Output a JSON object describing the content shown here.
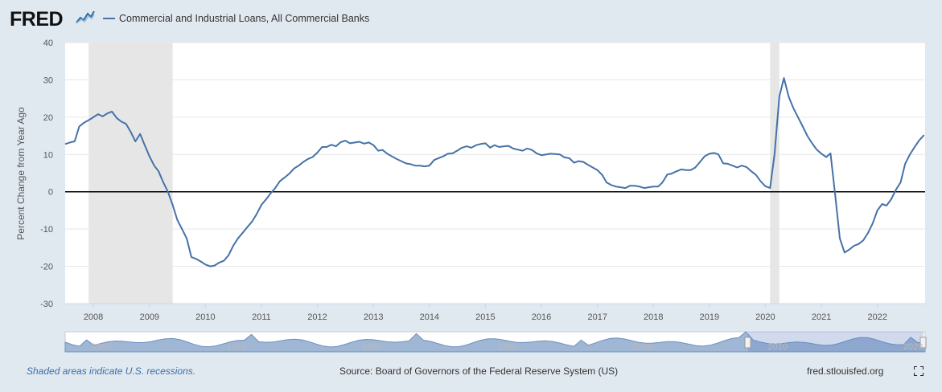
{
  "header": {
    "logo_text": "FRED",
    "series_name": "Commercial and Industrial Loans, All Commercial Banks",
    "series_color": "#4572a7"
  },
  "footer": {
    "recession_note": "Shaded areas indicate U.S. recessions.",
    "source": "Source: Board of Governors of the Federal Reserve System (US)",
    "site": "fred.stlouisfed.org",
    "fullscreen_icon": "fullscreen-icon"
  },
  "navigator": {
    "labels": [
      "1960",
      "1970",
      "1980",
      "1990",
      "2000",
      "2010",
      "2020"
    ]
  },
  "chart_data": {
    "type": "line",
    "ylabel": "Percent Change from Year Ago",
    "xlabel": "",
    "ylim": [
      -30,
      40
    ],
    "yticks": [
      -30,
      -20,
      -10,
      0,
      10,
      20,
      30,
      40
    ],
    "xticks": [
      "2008",
      "2009",
      "2010",
      "2011",
      "2012",
      "2013",
      "2014",
      "2015",
      "2016",
      "2017",
      "2018",
      "2019",
      "2020",
      "2021",
      "2022"
    ],
    "grid": true,
    "recessions": [
      [
        "2007-12",
        "2009-06"
      ],
      [
        "2020-02",
        "2020-04"
      ]
    ],
    "series": [
      {
        "name": "Commercial and Industrial Loans, All Commercial Banks",
        "color": "#4572a7",
        "points": [
          [
            "2007-07-01",
            12.8
          ],
          [
            "2007-08-01",
            13.2
          ],
          [
            "2007-09-01",
            13.5
          ],
          [
            "2007-10-01",
            17.5
          ],
          [
            "2007-11-01",
            18.5
          ],
          [
            "2007-12-01",
            19.2
          ],
          [
            "2008-01-01",
            20.0
          ],
          [
            "2008-02-01",
            20.8
          ],
          [
            "2008-03-01",
            20.2
          ],
          [
            "2008-04-01",
            21.0
          ],
          [
            "2008-05-01",
            21.5
          ],
          [
            "2008-06-01",
            19.8
          ],
          [
            "2008-07-01",
            18.8
          ],
          [
            "2008-08-01",
            18.2
          ],
          [
            "2008-09-01",
            16.0
          ],
          [
            "2008-10-01",
            13.5
          ],
          [
            "2008-11-01",
            15.5
          ],
          [
            "2008-12-01",
            12.5
          ],
          [
            "2009-01-01",
            9.5
          ],
          [
            "2009-02-01",
            7.0
          ],
          [
            "2009-03-01",
            5.5
          ],
          [
            "2009-04-01",
            2.5
          ],
          [
            "2009-05-01",
            0.0
          ],
          [
            "2009-06-01",
            -3.5
          ],
          [
            "2009-07-01",
            -7.5
          ],
          [
            "2009-08-01",
            -10.0
          ],
          [
            "2009-09-01",
            -12.5
          ],
          [
            "2009-10-01",
            -17.5
          ],
          [
            "2009-11-01",
            -18.0
          ],
          [
            "2009-12-01",
            -18.7
          ],
          [
            "2010-01-01",
            -19.5
          ],
          [
            "2010-02-01",
            -20.0
          ],
          [
            "2010-03-01",
            -19.8
          ],
          [
            "2010-04-01",
            -19.0
          ],
          [
            "2010-05-01",
            -18.5
          ],
          [
            "2010-06-01",
            -17.0
          ],
          [
            "2010-07-01",
            -14.5
          ],
          [
            "2010-08-01",
            -12.5
          ],
          [
            "2010-09-01",
            -11.0
          ],
          [
            "2010-10-01",
            -9.5
          ],
          [
            "2010-11-01",
            -8.0
          ],
          [
            "2010-12-01",
            -6.0
          ],
          [
            "2011-01-01",
            -3.5
          ],
          [
            "2011-02-01",
            -2.0
          ],
          [
            "2011-03-01",
            -0.5
          ],
          [
            "2011-04-01",
            1.0
          ],
          [
            "2011-05-01",
            2.8
          ],
          [
            "2011-06-01",
            3.8
          ],
          [
            "2011-07-01",
            4.8
          ],
          [
            "2011-08-01",
            6.2
          ],
          [
            "2011-09-01",
            7.0
          ],
          [
            "2011-10-01",
            8.0
          ],
          [
            "2011-11-01",
            8.8
          ],
          [
            "2011-12-01",
            9.3
          ],
          [
            "2012-01-01",
            10.5
          ],
          [
            "2012-02-01",
            12.0
          ],
          [
            "2012-03-01",
            12.0
          ],
          [
            "2012-04-01",
            12.6
          ],
          [
            "2012-05-01",
            12.2
          ],
          [
            "2012-06-01",
            13.3
          ],
          [
            "2012-07-01",
            13.7
          ],
          [
            "2012-08-01",
            13.0
          ],
          [
            "2012-09-01",
            13.2
          ],
          [
            "2012-10-01",
            13.4
          ],
          [
            "2012-11-01",
            12.9
          ],
          [
            "2012-12-01",
            13.2
          ],
          [
            "2013-01-01",
            12.5
          ],
          [
            "2013-02-01",
            11.0
          ],
          [
            "2013-03-01",
            11.2
          ],
          [
            "2013-04-01",
            10.2
          ],
          [
            "2013-05-01",
            9.5
          ],
          [
            "2013-06-01",
            8.8
          ],
          [
            "2013-07-01",
            8.2
          ],
          [
            "2013-08-01",
            7.6
          ],
          [
            "2013-09-01",
            7.4
          ],
          [
            "2013-10-01",
            7.0
          ],
          [
            "2013-11-01",
            7.0
          ],
          [
            "2013-12-01",
            6.8
          ],
          [
            "2014-01-01",
            7.0
          ],
          [
            "2014-02-01",
            8.5
          ],
          [
            "2014-03-01",
            9.0
          ],
          [
            "2014-04-01",
            9.5
          ],
          [
            "2014-05-01",
            10.2
          ],
          [
            "2014-06-01",
            10.3
          ],
          [
            "2014-07-01",
            11.0
          ],
          [
            "2014-08-01",
            11.8
          ],
          [
            "2014-09-01",
            12.2
          ],
          [
            "2014-10-01",
            11.8
          ],
          [
            "2014-11-01",
            12.5
          ],
          [
            "2014-12-01",
            12.8
          ],
          [
            "2015-01-01",
            13.0
          ],
          [
            "2015-02-01",
            11.8
          ],
          [
            "2015-03-01",
            12.5
          ],
          [
            "2015-04-01",
            12.0
          ],
          [
            "2015-05-01",
            12.2
          ],
          [
            "2015-06-01",
            12.3
          ],
          [
            "2015-07-01",
            11.6
          ],
          [
            "2015-08-01",
            11.3
          ],
          [
            "2015-09-01",
            11.0
          ],
          [
            "2015-10-01",
            11.6
          ],
          [
            "2015-11-01",
            11.2
          ],
          [
            "2015-12-01",
            10.3
          ],
          [
            "2016-01-01",
            9.8
          ],
          [
            "2016-02-01",
            10.0
          ],
          [
            "2016-03-01",
            10.2
          ],
          [
            "2016-04-01",
            10.1
          ],
          [
            "2016-05-01",
            10.0
          ],
          [
            "2016-06-01",
            9.2
          ],
          [
            "2016-07-01",
            9.0
          ],
          [
            "2016-08-01",
            7.8
          ],
          [
            "2016-09-01",
            8.2
          ],
          [
            "2016-10-01",
            8.0
          ],
          [
            "2016-11-01",
            7.2
          ],
          [
            "2016-12-01",
            6.5
          ],
          [
            "2017-01-01",
            5.8
          ],
          [
            "2017-02-01",
            4.5
          ],
          [
            "2017-03-01",
            2.5
          ],
          [
            "2017-04-01",
            1.8
          ],
          [
            "2017-05-01",
            1.4
          ],
          [
            "2017-06-01",
            1.2
          ],
          [
            "2017-07-01",
            1.0
          ],
          [
            "2017-08-01",
            1.6
          ],
          [
            "2017-09-01",
            1.6
          ],
          [
            "2017-10-01",
            1.4
          ],
          [
            "2017-11-01",
            1.0
          ],
          [
            "2017-12-01",
            1.2
          ],
          [
            "2018-01-01",
            1.4
          ],
          [
            "2018-02-01",
            1.4
          ],
          [
            "2018-03-01",
            2.5
          ],
          [
            "2018-04-01",
            4.6
          ],
          [
            "2018-05-01",
            4.9
          ],
          [
            "2018-06-01",
            5.5
          ],
          [
            "2018-07-01",
            6.0
          ],
          [
            "2018-08-01",
            5.8
          ],
          [
            "2018-09-01",
            5.8
          ],
          [
            "2018-10-01",
            6.5
          ],
          [
            "2018-11-01",
            8.0
          ],
          [
            "2018-12-01",
            9.5
          ],
          [
            "2019-01-01",
            10.2
          ],
          [
            "2019-02-01",
            10.4
          ],
          [
            "2019-03-01",
            10.0
          ],
          [
            "2019-04-01",
            7.6
          ],
          [
            "2019-05-01",
            7.5
          ],
          [
            "2019-06-01",
            7.0
          ],
          [
            "2019-07-01",
            6.5
          ],
          [
            "2019-08-01",
            7.0
          ],
          [
            "2019-09-01",
            6.6
          ],
          [
            "2019-10-01",
            5.5
          ],
          [
            "2019-11-01",
            4.5
          ],
          [
            "2019-12-01",
            2.8
          ],
          [
            "2020-01-01",
            1.5
          ],
          [
            "2020-02-01",
            1.0
          ],
          [
            "2020-03-01",
            10.0
          ],
          [
            "2020-04-01",
            25.5
          ],
          [
            "2020-05-01",
            30.5
          ],
          [
            "2020-06-01",
            25.5
          ],
          [
            "2020-07-01",
            22.5
          ],
          [
            "2020-08-01",
            20.0
          ],
          [
            "2020-09-01",
            17.5
          ],
          [
            "2020-10-01",
            15.0
          ],
          [
            "2020-11-01",
            13.0
          ],
          [
            "2020-12-01",
            11.3
          ],
          [
            "2021-01-01",
            10.2
          ],
          [
            "2021-02-01",
            9.3
          ],
          [
            "2021-03-01",
            10.3
          ],
          [
            "2021-04-01",
            -1.0
          ],
          [
            "2021-05-01",
            -12.5
          ],
          [
            "2021-06-01",
            -16.3
          ],
          [
            "2021-07-01",
            -15.5
          ],
          [
            "2021-08-01",
            -14.5
          ],
          [
            "2021-09-01",
            -14.0
          ],
          [
            "2021-10-01",
            -13.0
          ],
          [
            "2021-11-01",
            -11.0
          ],
          [
            "2021-12-01",
            -8.5
          ],
          [
            "2022-01-01",
            -5.0
          ],
          [
            "2022-02-01",
            -3.3
          ],
          [
            "2022-03-01",
            -3.7
          ],
          [
            "2022-04-01",
            -2.0
          ],
          [
            "2022-05-01",
            0.5
          ],
          [
            "2022-06-01",
            2.5
          ],
          [
            "2022-07-01",
            7.5
          ],
          [
            "2022-08-01",
            10.0
          ],
          [
            "2022-09-01",
            12.0
          ],
          [
            "2022-10-01",
            13.8
          ],
          [
            "2022-11-01",
            15.2
          ]
        ]
      }
    ]
  }
}
